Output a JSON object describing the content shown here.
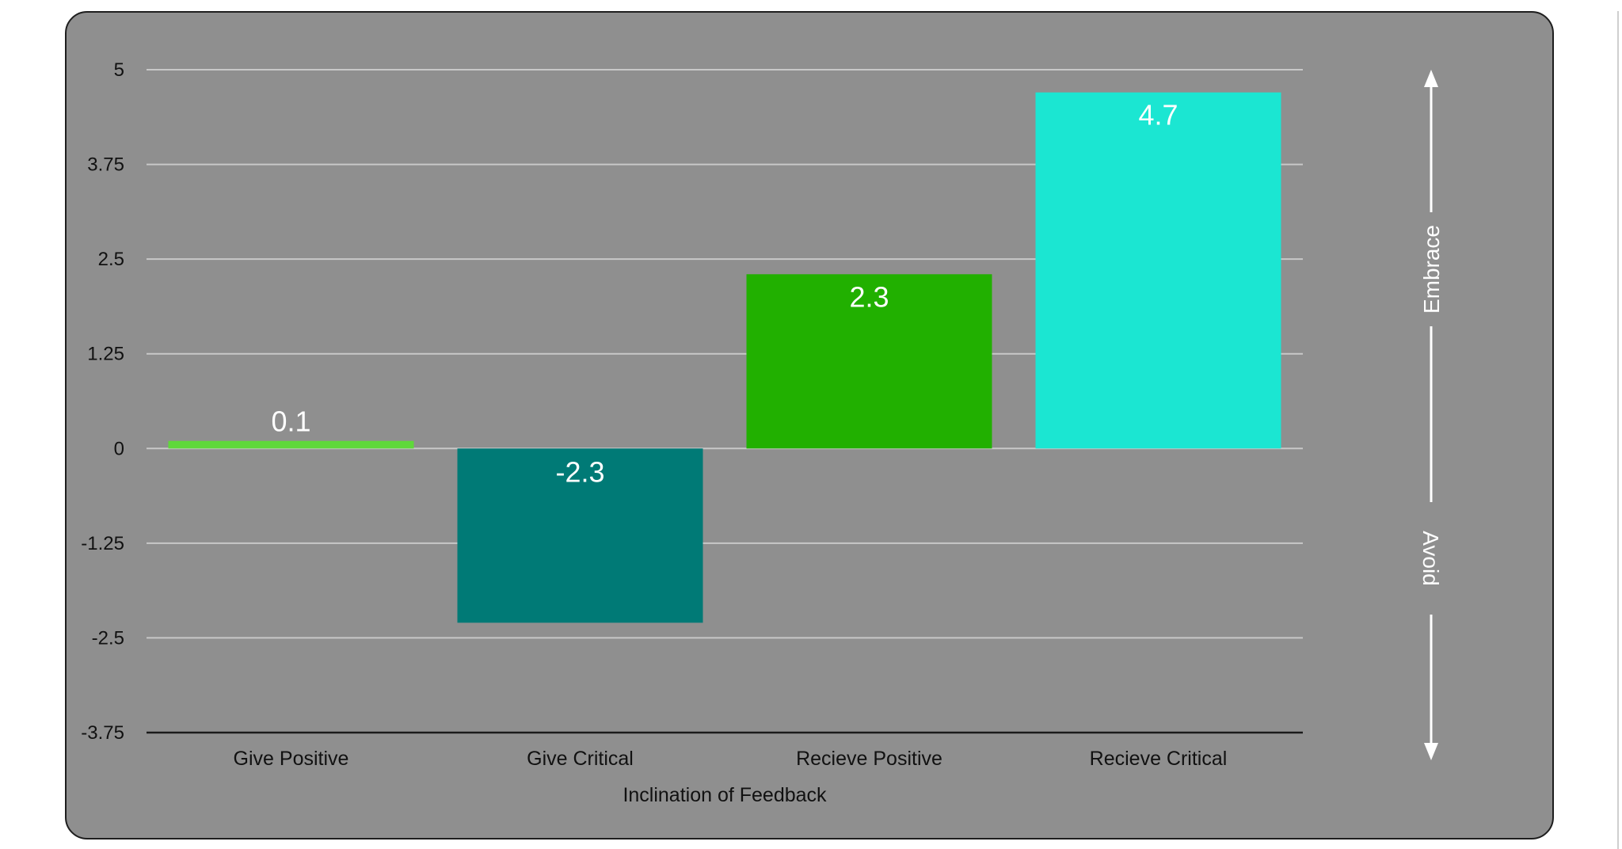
{
  "chart_data": {
    "type": "bar",
    "categories": [
      "Give Positive",
      "Give Critical",
      "Recieve Positive",
      "Recieve Critical"
    ],
    "values": [
      0.1,
      -2.3,
      2.3,
      4.7
    ],
    "data_labels": [
      "0.1",
      "-2.3",
      "2.3",
      "4.7"
    ],
    "colors": [
      "#5fd83a",
      "#007a76",
      "#21b000",
      "#1be6d2"
    ],
    "xlabel": "Inclination of Feedback",
    "ylabel": "",
    "title": "",
    "ylim": [
      -3.75,
      5
    ],
    "yticks": [
      5,
      3.75,
      2.5,
      1.25,
      0,
      -1.25,
      -2.5,
      -3.75
    ],
    "ytick_labels": [
      "5",
      "3.75",
      "2.5",
      "1.25",
      "0",
      "-1.25",
      "-2.5",
      "-3.75"
    ],
    "grid": true,
    "legend": "none"
  },
  "side_axis": {
    "top_label": "Embrace",
    "bottom_label": "Avoid"
  },
  "colors": {
    "panel_background": "#8f8f8f",
    "gridline": "#c8c8c8",
    "axis_line": "#1a1a1a",
    "arrow": "#ffffff"
  }
}
